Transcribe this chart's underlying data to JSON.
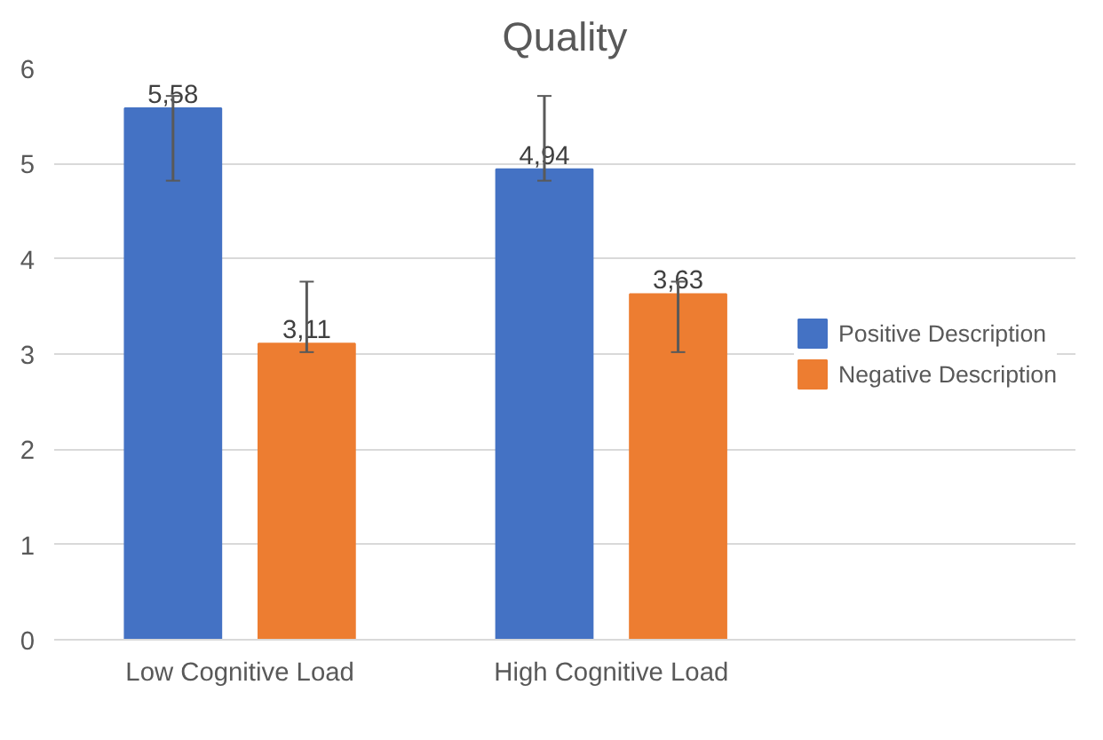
{
  "chart_data": {
    "type": "bar",
    "title": "Quality",
    "categories": [
      "Low Cognitive Load",
      "High Cognitive Load"
    ],
    "series": [
      {
        "name": "Positive Description",
        "color": "#4472c4",
        "values": [
          5.58,
          4.94
        ],
        "value_labels": [
          "5,58",
          "4,94"
        ],
        "errors": [
          [
            4.82,
            5.71
          ],
          [
            4.82,
            5.71
          ]
        ]
      },
      {
        "name": "Negative Description",
        "color": "#ed7d31",
        "values": [
          3.11,
          3.63
        ],
        "value_labels": [
          "3,11",
          "3,63"
        ],
        "errors": [
          [
            3.02,
            3.76
          ],
          [
            3.02,
            3.76
          ]
        ]
      }
    ],
    "ylim": [
      0,
      6
    ],
    "yticks": [
      0,
      1,
      2,
      3,
      4,
      5,
      6
    ],
    "grid": "y",
    "legend": "right"
  }
}
